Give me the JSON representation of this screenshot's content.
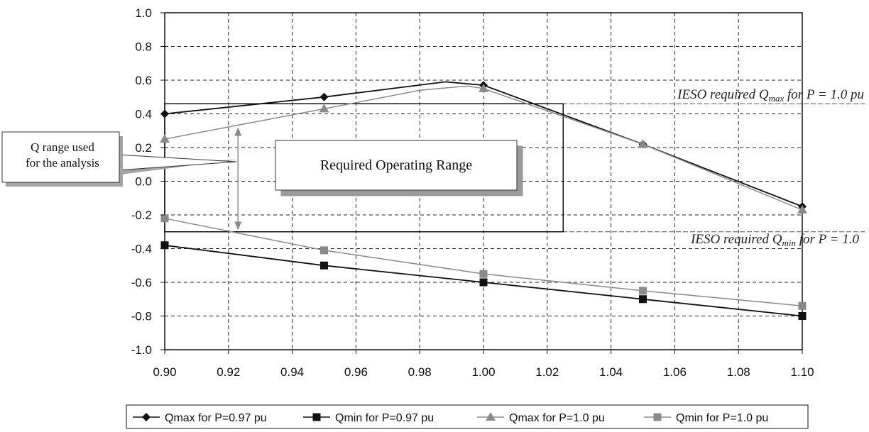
{
  "chart_data": {
    "type": "line",
    "xlim": [
      0.9,
      1.1
    ],
    "ylim": [
      -1.0,
      1.0
    ],
    "x_ticks": [
      "0.90",
      "0.92",
      "0.94",
      "0.96",
      "0.98",
      "1.00",
      "1.02",
      "1.04",
      "1.06",
      "1.08",
      "1.10"
    ],
    "y_ticks": [
      "1.0",
      "0.8",
      "0.6",
      "0.4",
      "0.2",
      "0.0",
      "-0.2",
      "-0.4",
      "-0.6",
      "-0.8",
      "-1.0"
    ],
    "grid": true,
    "legend_position": "bottom",
    "series": [
      {
        "name": "Qmax for P=0.97 pu",
        "color": "#111111",
        "marker": "diamond",
        "points": [
          [
            0.9,
            0.4
          ],
          [
            0.95,
            0.5
          ],
          [
            1.0,
            0.57
          ],
          [
            1.05,
            0.22
          ],
          [
            1.1,
            -0.15
          ]
        ],
        "curve": [
          [
            0.9,
            0.4
          ],
          [
            0.95,
            0.5
          ],
          [
            0.988,
            0.59
          ],
          [
            1.0,
            0.57
          ],
          [
            1.05,
            0.22
          ],
          [
            1.1,
            -0.15
          ]
        ]
      },
      {
        "name": "Qmin for P=0.97 pu",
        "color": "#111111",
        "marker": "square",
        "points": [
          [
            0.9,
            -0.38
          ],
          [
            0.95,
            -0.5
          ],
          [
            1.0,
            -0.6
          ],
          [
            1.05,
            -0.7
          ],
          [
            1.1,
            -0.8
          ]
        ],
        "curve": [
          [
            0.9,
            -0.38
          ],
          [
            0.95,
            -0.5
          ],
          [
            1.0,
            -0.6
          ],
          [
            1.05,
            -0.7
          ],
          [
            1.1,
            -0.8
          ]
        ]
      },
      {
        "name": "Qmax for P=1.0 pu",
        "color": "#8a8a8a",
        "marker": "triangle",
        "points": [
          [
            0.9,
            0.25
          ],
          [
            0.95,
            0.43
          ],
          [
            1.0,
            0.55
          ],
          [
            1.05,
            0.22
          ],
          [
            1.1,
            -0.17
          ]
        ],
        "curve": [
          [
            0.9,
            0.25
          ],
          [
            0.95,
            0.43
          ],
          [
            0.98,
            0.54
          ],
          [
            0.995,
            0.565
          ],
          [
            1.0,
            0.55
          ],
          [
            1.05,
            0.22
          ],
          [
            1.1,
            -0.17
          ]
        ]
      },
      {
        "name": "Qmin for P=1.0 pu",
        "color": "#8a8a8a",
        "marker": "square",
        "points": [
          [
            0.9,
            -0.22
          ],
          [
            0.95,
            -0.41
          ],
          [
            1.0,
            -0.55
          ],
          [
            1.05,
            -0.65
          ],
          [
            1.1,
            -0.74
          ]
        ],
        "curve": [
          [
            0.9,
            -0.22
          ],
          [
            0.95,
            -0.41
          ],
          [
            1.0,
            -0.55
          ],
          [
            1.05,
            -0.65
          ],
          [
            1.1,
            -0.74
          ]
        ]
      }
    ],
    "reference_lines": [
      {
        "y": 0.46,
        "label_pre": "IESO required Q",
        "label_sub": "max",
        "label_post": " for P = 1.0 pu"
      },
      {
        "y": -0.3,
        "label_pre": "IESO required Q",
        "label_sub": "min",
        "label_post": " for P = 1.0"
      }
    ],
    "operating_range": {
      "x": [
        0.9,
        1.025
      ],
      "y": [
        -0.3,
        0.46
      ],
      "label": "Required Operating Range"
    },
    "q_range_arrow": {
      "x": 0.923,
      "y": [
        0.32,
        -0.29
      ]
    },
    "callout": {
      "lines": [
        "Q range used",
        "for the analysis"
      ]
    }
  }
}
